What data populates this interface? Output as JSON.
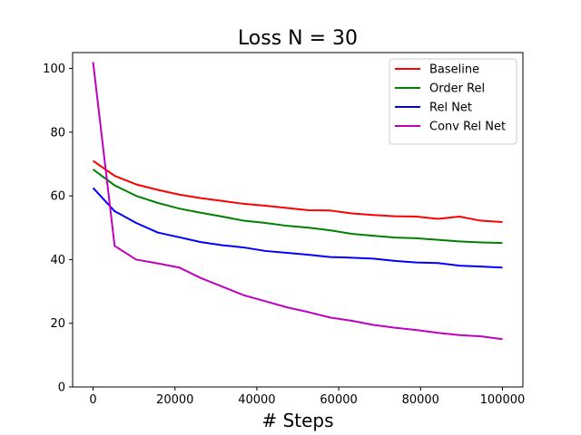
{
  "chart_data": {
    "type": "line",
    "title": "Loss N = 30",
    "xlabel": "# Steps",
    "ylabel": "",
    "xlim": [
      -5000,
      105000
    ],
    "ylim": [
      0,
      105
    ],
    "xticks": [
      0,
      20000,
      40000,
      60000,
      80000,
      100000
    ],
    "yticks": [
      0,
      20,
      40,
      60,
      80,
      100
    ],
    "grid": false,
    "legend_position": "top-right",
    "x": [
      0,
      5263,
      10526,
      15789,
      21053,
      26316,
      31579,
      36842,
      42105,
      47368,
      52632,
      57895,
      63158,
      68421,
      73684,
      78947,
      84211,
      89474,
      94737,
      100000
    ],
    "series": [
      {
        "name": "Baseline",
        "color": "#ff0000",
        "values": [
          71.0,
          66.3,
          63.6,
          61.9,
          60.4,
          59.3,
          58.4,
          57.5,
          56.9,
          56.2,
          55.5,
          55.4,
          54.5,
          54.0,
          53.6,
          53.5,
          52.8,
          53.5,
          52.2,
          51.8
        ]
      },
      {
        "name": "Order Rel",
        "color": "#008000",
        "values": [
          68.3,
          63.3,
          60.0,
          57.8,
          56.0,
          54.7,
          53.5,
          52.2,
          51.5,
          50.6,
          50.0,
          49.2,
          48.1,
          47.5,
          46.9,
          46.7,
          46.2,
          45.7,
          45.4,
          45.2
        ]
      },
      {
        "name": "Rel Net",
        "color": "#0000ff",
        "values": [
          62.5,
          55.2,
          51.5,
          48.5,
          47.0,
          45.5,
          44.5,
          43.8,
          42.7,
          42.1,
          41.5,
          40.8,
          40.6,
          40.3,
          39.6,
          39.1,
          38.9,
          38.1,
          37.8,
          37.5
        ]
      },
      {
        "name": "Conv Rel Net",
        "color": "#bf00bf",
        "values": [
          102.0,
          44.3,
          40.0,
          38.8,
          37.5,
          34.2,
          31.5,
          28.8,
          26.9,
          25.0,
          23.5,
          21.8,
          20.8,
          19.5,
          18.6,
          17.9,
          17.0,
          16.3,
          15.9,
          15.0
        ]
      }
    ]
  }
}
